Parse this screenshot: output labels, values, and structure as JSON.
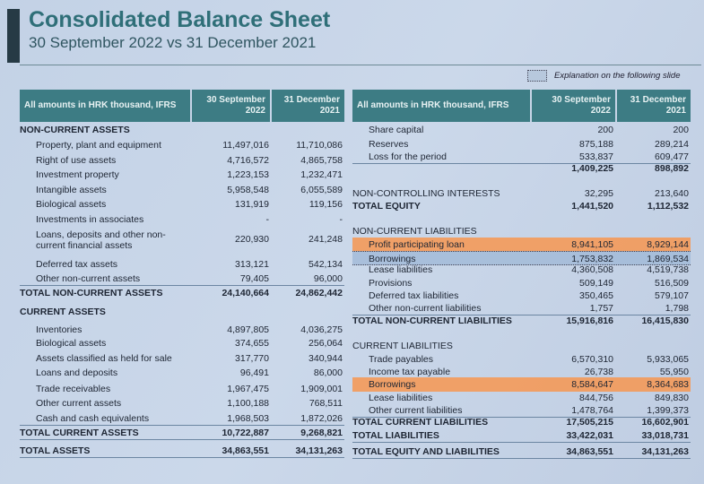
{
  "header": {
    "title": "Consolidated Balance Sheet",
    "subtitle": "30 September 2022 vs 31 December 2021",
    "legend_note": "Explanation on the following slide"
  },
  "colors": {
    "header_bg": "#3d7c84",
    "title": "#2f6f78",
    "highlight_orange": "#f79650",
    "highlight_blue": "#a0b9d7"
  },
  "assets": {
    "col_header": "All amounts in HRK thousand, IFRS",
    "col1": "30 September 2022",
    "col2": "31 December 2021",
    "rows": [
      {
        "label": "NON-CURRENT ASSETS",
        "v1": "",
        "v2": "",
        "style": "bold"
      },
      {
        "label": "Property, plant and equipment",
        "v1": "11,497,016",
        "v2": "11,710,086",
        "style": "indent"
      },
      {
        "label": "Right of use assets",
        "v1": "4,716,572",
        "v2": "4,865,758",
        "style": "indent"
      },
      {
        "label": "Investment property",
        "v1": "1,223,153",
        "v2": "1,232,471",
        "style": "indent"
      },
      {
        "label": "Intangible assets",
        "v1": "5,958,548",
        "v2": "6,055,589",
        "style": "indent"
      },
      {
        "label": "Biological assets",
        "v1": "131,919",
        "v2": "119,156",
        "style": "indent"
      },
      {
        "label": "Investments in associates",
        "v1": "-",
        "v2": "-",
        "style": "indent"
      },
      {
        "label": "Loans, deposits and other non-\ncurrent financial assets",
        "v1": "220,930",
        "v2": "241,248",
        "style": "indent two"
      },
      {
        "label": "Deferred tax assets",
        "v1": "313,121",
        "v2": "542,134",
        "style": "indent"
      },
      {
        "label": "Other non-current assets",
        "v1": "79,405",
        "v2": "96,000",
        "style": "indent line"
      },
      {
        "label": "TOTAL NON-CURRENT ASSETS",
        "v1": "24,140,664",
        "v2": "24,862,442",
        "style": "bold"
      },
      {
        "label": "CURRENT ASSETS",
        "v1": "",
        "v2": "",
        "style": "bold"
      },
      {
        "label": "Inventories",
        "v1": "4,897,805",
        "v2": "4,036,275",
        "style": "indent"
      },
      {
        "label": "Biological assets",
        "v1": "374,655",
        "v2": "256,064",
        "style": "indent"
      },
      {
        "label": "Assets classified as held for sale",
        "v1": "317,770",
        "v2": "340,944",
        "style": "indent"
      },
      {
        "label": "Loans and deposits",
        "v1": "96,491",
        "v2": "86,000",
        "style": "indent"
      },
      {
        "label": "Trade receivables",
        "v1": "1,967,475",
        "v2": "1,909,001",
        "style": "indent"
      },
      {
        "label": "Other current assets",
        "v1": "1,100,188",
        "v2": "768,511",
        "style": "indent"
      },
      {
        "label": "Cash and cash equivalents",
        "v1": "1,968,503",
        "v2": "1,872,026",
        "style": "indent line"
      },
      {
        "label": "TOTAL CURRENT ASSETS",
        "v1": "10,722,887",
        "v2": "9,268,821",
        "style": "bold line"
      },
      {
        "label": "TOTAL ASSETS",
        "v1": "34,863,551",
        "v2": "34,131,263",
        "style": "bold line"
      }
    ]
  },
  "liabilities": {
    "col_header": "All amounts in HRK thousand, IFRS",
    "col1": "30 September 2022",
    "col2": "31 December 2021",
    "rows": [
      {
        "label": "Share capital",
        "v1": "200",
        "v2": "200",
        "style": "indent"
      },
      {
        "label": "Reserves",
        "v1": "875,188",
        "v2": "289,214",
        "style": "indent"
      },
      {
        "label": "Loss for the period",
        "v1": "533,837",
        "v2": "609,477",
        "style": "indent line"
      },
      {
        "label": "",
        "v1": "1,409,225",
        "v2": "898,892",
        "style": "bold"
      },
      {
        "label": "NON-CONTROLLING INTERESTS",
        "v1": "32,295",
        "v2": "213,640",
        "style": ""
      },
      {
        "label": "TOTAL EQUITY",
        "v1": "1,441,520",
        "v2": "1,112,532",
        "style": "bold"
      },
      {
        "label": "NON-CURRENT LIABILITIES",
        "v1": "",
        "v2": "",
        "style": ""
      },
      {
        "label": "Profit participating loan",
        "v1": "8,941,105",
        "v2": "8,929,144",
        "style": "indent hl-orange"
      },
      {
        "label": "Borrowings",
        "v1": "1,753,832",
        "v2": "1,869,534",
        "style": "indent hl-blue"
      },
      {
        "label": "Lease liabilities",
        "v1": "4,360,508",
        "v2": "4,519,738",
        "style": "indent"
      },
      {
        "label": "Provisions",
        "v1": "509,149",
        "v2": "516,509",
        "style": "indent"
      },
      {
        "label": "Deferred tax liabilities",
        "v1": "350,465",
        "v2": "579,107",
        "style": "indent"
      },
      {
        "label": "Other non-current liabilities",
        "v1": "1,757",
        "v2": "1,798",
        "style": "indent line"
      },
      {
        "label": "TOTAL NON-CURRENT LIABILITIES",
        "v1": "15,916,816",
        "v2": "16,415,830",
        "style": "bold"
      },
      {
        "label": "CURRENT LIABILITIES",
        "v1": "",
        "v2": "",
        "style": ""
      },
      {
        "label": "Trade payables",
        "v1": "6,570,310",
        "v2": "5,933,065",
        "style": "indent"
      },
      {
        "label": "Income tax payable",
        "v1": "26,738",
        "v2": "55,950",
        "style": "indent"
      },
      {
        "label": "Borrowings",
        "v1": "8,584,647",
        "v2": "8,364,683",
        "style": "indent hl-orange"
      },
      {
        "label": "Lease liabilities",
        "v1": "844,756",
        "v2": "849,830",
        "style": "indent"
      },
      {
        "label": "Other current liabilities",
        "v1": "1,478,764",
        "v2": "1,399,373",
        "style": "indent line"
      },
      {
        "label": "TOTAL CURRENT LIABILITIES",
        "v1": "17,505,215",
        "v2": "16,602,901",
        "style": "bold"
      },
      {
        "label": "TOTAL LIABILITIES",
        "v1": "33,422,031",
        "v2": "33,018,731",
        "style": "bold line"
      },
      {
        "label": "TOTAL EQUITY AND LIABILITIES",
        "v1": "34,863,551",
        "v2": "34,131,263",
        "style": "bold line"
      }
    ]
  }
}
